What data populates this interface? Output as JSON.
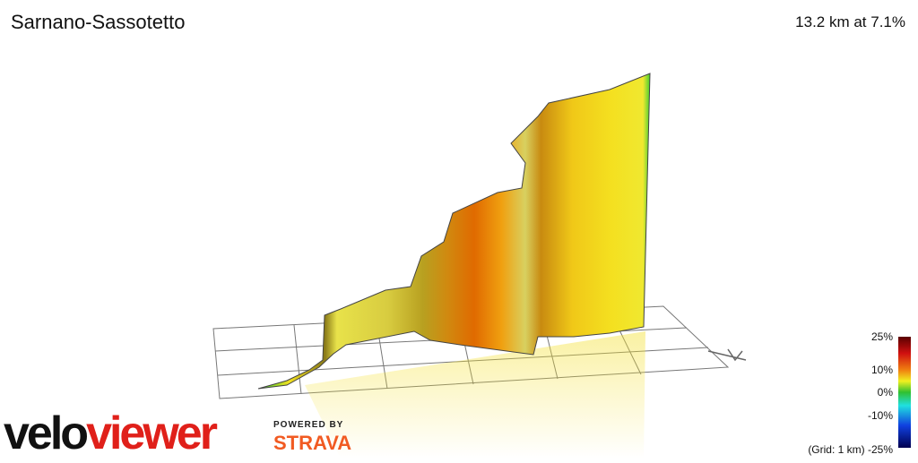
{
  "header": {
    "title": "Sarnano-Sassotetto",
    "summary": "13.2 km at 7.1%"
  },
  "legend": {
    "labels": [
      "25%",
      "10%",
      "0%",
      "-10%",
      "(Grid: 1 km) -25%"
    ]
  },
  "logo": {
    "velo": "velo",
    "viewer": "viewer",
    "powered_by": "POWERED BY",
    "strava": "STRAVA"
  }
}
